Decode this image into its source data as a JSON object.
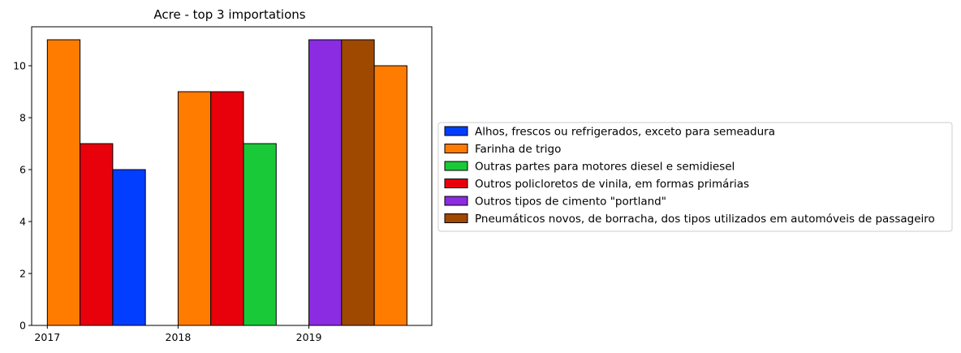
{
  "chart_data": {
    "type": "bar",
    "title": "Acre - top 3 importations",
    "xlabel": "",
    "ylabel": "",
    "ylim": [
      0,
      11.5
    ],
    "xlim": [
      2016.88,
      2019.94
    ],
    "bar_width": 0.25,
    "yticks": [
      0,
      2,
      4,
      6,
      8,
      10
    ],
    "xticks": [
      2017,
      2018,
      2019
    ],
    "grid": false,
    "legend_position": "right",
    "series": [
      {
        "name": "Alhos, frescos ou refrigerados, exceto para semeadura",
        "color": "#023eff"
      },
      {
        "name": "Farinha de trigo",
        "color": "#ff7c00"
      },
      {
        "name": "Outras partes para motores diesel e semidiesel",
        "color": "#1ac938"
      },
      {
        "name": "Outros policloretos de vinila, em formas primárias",
        "color": "#e8000b"
      },
      {
        "name": "Outros tipos de cimento \"portland\"",
        "color": "#8b2be2"
      },
      {
        "name": "Pneumáticos novos, de borracha, dos tipos utilizados em automóveis de passageiro",
        "color": "#9f4800"
      }
    ],
    "bars": [
      {
        "year": 2017,
        "slot": 0,
        "series": "Farinha de trigo",
        "value": 11
      },
      {
        "year": 2017,
        "slot": 1,
        "series": "Outros policloretos de vinila, em formas primárias",
        "value": 7
      },
      {
        "year": 2017,
        "slot": 2,
        "series": "Alhos, frescos ou refrigerados, exceto para semeadura",
        "value": 6
      },
      {
        "year": 2018,
        "slot": 0,
        "series": "Farinha de trigo",
        "value": 9
      },
      {
        "year": 2018,
        "slot": 1,
        "series": "Outros policloretos de vinila, em formas primárias",
        "value": 9
      },
      {
        "year": 2018,
        "slot": 2,
        "series": "Outras partes para motores diesel e semidiesel",
        "value": 7
      },
      {
        "year": 2019,
        "slot": 0,
        "series": "Outros tipos de cimento \"portland\"",
        "value": 11
      },
      {
        "year": 2019,
        "slot": 1,
        "series": "Pneumáticos novos, de borracha, dos tipos utilizados em automóveis de passageiro",
        "value": 11
      },
      {
        "year": 2019,
        "slot": 2,
        "series": "Farinha de trigo",
        "value": 10
      }
    ]
  }
}
